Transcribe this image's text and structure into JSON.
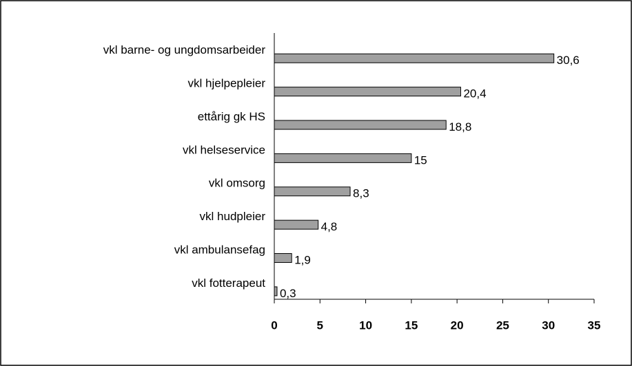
{
  "chart_data": {
    "type": "bar",
    "orientation": "horizontal",
    "categories": [
      "vkl barne- og ungdomsarbeider",
      "vkl hjelpepleier",
      "ettårig gk HS",
      "vkl helseservice",
      "vkl omsorg",
      "vkl hudpleier",
      "vkl ambulansefag",
      "vkl fotterapeut"
    ],
    "values": [
      30.6,
      20.4,
      18.8,
      15,
      8.3,
      4.8,
      1.9,
      0.3
    ],
    "value_labels": [
      "30,6",
      "20,4",
      "18,8",
      "15",
      "8,3",
      "4,8",
      "1,9",
      "0,3"
    ],
    "color": "#a0a0a0",
    "xlim": [
      0,
      35
    ],
    "xticks": [
      0,
      5,
      10,
      15,
      20,
      25,
      30,
      35
    ]
  }
}
